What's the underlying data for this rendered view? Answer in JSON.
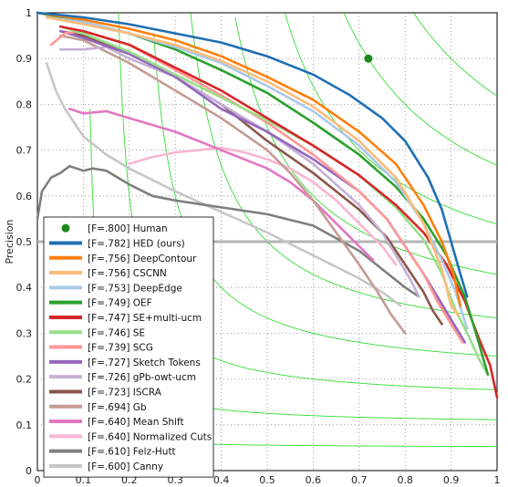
{
  "chart_data": {
    "type": "line",
    "title": "",
    "xlabel": "",
    "ylabel": "Precision",
    "xlim": [
      0,
      1
    ],
    "ylim": [
      0,
      1
    ],
    "xticks": [
      "0",
      "0.1",
      "0.2",
      "0.3",
      "0.4",
      "0.5",
      "0.6",
      "0.7",
      "0.8",
      "0.9",
      "1"
    ],
    "yticks": [
      "0",
      "0.1",
      "0.2",
      "0.3",
      "0.4",
      "0.5",
      "0.6",
      "0.7",
      "0.8",
      "0.9",
      "1"
    ],
    "grid": "dotted",
    "legend_position": "bottom-left",
    "iso_f_contours": [
      0.1,
      0.2,
      0.3,
      0.4,
      0.5,
      0.6,
      0.7,
      0.8,
      0.9
    ],
    "iso_f_color": "#33dd33",
    "human": {
      "label": "[F=.800] Human",
      "point": [
        0.72,
        0.9
      ],
      "color": "#1a8a1a"
    },
    "reference_line": {
      "y": 0.5,
      "color": "#b4b4b4"
    },
    "series": [
      {
        "name": "[F=.782] HED (ours)",
        "color": "#1f6fb4",
        "points": [
          [
            0,
            1
          ],
          [
            0.1,
            0.99
          ],
          [
            0.2,
            0.975
          ],
          [
            0.3,
            0.955
          ],
          [
            0.4,
            0.935
          ],
          [
            0.5,
            0.905
          ],
          [
            0.6,
            0.865
          ],
          [
            0.68,
            0.82
          ],
          [
            0.75,
            0.77
          ],
          [
            0.8,
            0.72
          ],
          [
            0.85,
            0.64
          ],
          [
            0.88,
            0.57
          ],
          [
            0.9,
            0.5
          ],
          [
            0.92,
            0.43
          ],
          [
            0.935,
            0.38
          ]
        ]
      },
      {
        "name": "[F=.756] DeepContour",
        "color": "#ff7f0e",
        "points": [
          [
            0,
            1
          ],
          [
            0.1,
            0.985
          ],
          [
            0.2,
            0.965
          ],
          [
            0.3,
            0.94
          ],
          [
            0.4,
            0.905
          ],
          [
            0.5,
            0.86
          ],
          [
            0.6,
            0.81
          ],
          [
            0.7,
            0.74
          ],
          [
            0.78,
            0.67
          ],
          [
            0.84,
            0.58
          ],
          [
            0.88,
            0.5
          ],
          [
            0.905,
            0.43
          ],
          [
            0.92,
            0.36
          ]
        ]
      },
      {
        "name": "[F=.756] CSCNN",
        "color": "#ffbb78",
        "points": [
          [
            0.02,
            0.99
          ],
          [
            0.1,
            0.975
          ],
          [
            0.2,
            0.955
          ],
          [
            0.3,
            0.93
          ],
          [
            0.4,
            0.895
          ],
          [
            0.5,
            0.85
          ],
          [
            0.6,
            0.795
          ],
          [
            0.7,
            0.72
          ],
          [
            0.78,
            0.64
          ],
          [
            0.84,
            0.54
          ],
          [
            0.88,
            0.44
          ],
          [
            0.9,
            0.36
          ],
          [
            0.915,
            0.34
          ]
        ]
      },
      {
        "name": "[F=.753] DeepEdge",
        "color": "#a9c9e8",
        "points": [
          [
            0.02,
            0.99
          ],
          [
            0.1,
            0.98
          ],
          [
            0.2,
            0.955
          ],
          [
            0.3,
            0.925
          ],
          [
            0.4,
            0.89
          ],
          [
            0.5,
            0.84
          ],
          [
            0.6,
            0.785
          ],
          [
            0.7,
            0.71
          ],
          [
            0.78,
            0.63
          ],
          [
            0.84,
            0.54
          ],
          [
            0.88,
            0.46
          ],
          [
            0.91,
            0.39
          ],
          [
            0.935,
            0.31
          ]
        ]
      },
      {
        "name": "[F=.749] OEF",
        "color": "#2ca02c",
        "points": [
          [
            0,
            1
          ],
          [
            0.1,
            0.98
          ],
          [
            0.2,
            0.955
          ],
          [
            0.3,
            0.92
          ],
          [
            0.4,
            0.875
          ],
          [
            0.5,
            0.825
          ],
          [
            0.6,
            0.76
          ],
          [
            0.7,
            0.69
          ],
          [
            0.78,
            0.62
          ],
          [
            0.84,
            0.55
          ],
          [
            0.89,
            0.47
          ],
          [
            0.93,
            0.38
          ],
          [
            0.96,
            0.28
          ],
          [
            0.98,
            0.21
          ]
        ]
      },
      {
        "name": "[F=.747] SE+multi-ucm",
        "color": "#d62728",
        "points": [
          [
            0.05,
            0.97
          ],
          [
            0.1,
            0.96
          ],
          [
            0.2,
            0.93
          ],
          [
            0.3,
            0.88
          ],
          [
            0.4,
            0.83
          ],
          [
            0.5,
            0.77
          ],
          [
            0.6,
            0.71
          ],
          [
            0.7,
            0.645
          ],
          [
            0.78,
            0.58
          ],
          [
            0.84,
            0.52
          ],
          [
            0.89,
            0.45
          ],
          [
            0.93,
            0.37
          ],
          [
            0.96,
            0.29
          ],
          [
            0.985,
            0.23
          ],
          [
            1.0,
            0.16
          ]
        ]
      },
      {
        "name": "[F=.746] SE",
        "color": "#98df8a",
        "points": [
          [
            0.05,
            0.97
          ],
          [
            0.1,
            0.955
          ],
          [
            0.2,
            0.915
          ],
          [
            0.3,
            0.865
          ],
          [
            0.4,
            0.815
          ],
          [
            0.5,
            0.765
          ],
          [
            0.6,
            0.71
          ],
          [
            0.7,
            0.645
          ],
          [
            0.78,
            0.575
          ],
          [
            0.84,
            0.505
          ],
          [
            0.88,
            0.43
          ],
          [
            0.91,
            0.35
          ],
          [
            0.94,
            0.29
          ],
          [
            0.96,
            0.245
          ],
          [
            0.98,
            0.21
          ]
        ]
      },
      {
        "name": "[F=.739] SCG",
        "color": "#ff9896",
        "points": [
          [
            0.03,
            0.93
          ],
          [
            0.06,
            0.955
          ],
          [
            0.1,
            0.96
          ],
          [
            0.2,
            0.93
          ],
          [
            0.3,
            0.875
          ],
          [
            0.4,
            0.82
          ],
          [
            0.5,
            0.76
          ],
          [
            0.6,
            0.69
          ],
          [
            0.7,
            0.61
          ],
          [
            0.76,
            0.55
          ],
          [
            0.8,
            0.49
          ],
          [
            0.84,
            0.43
          ],
          [
            0.87,
            0.37
          ],
          [
            0.9,
            0.32
          ],
          [
            0.925,
            0.28
          ]
        ]
      },
      {
        "name": "[F=.727] Sketch Tokens",
        "color": "#9467bd",
        "points": [
          [
            0.05,
            0.96
          ],
          [
            0.1,
            0.945
          ],
          [
            0.2,
            0.91
          ],
          [
            0.3,
            0.86
          ],
          [
            0.4,
            0.79
          ],
          [
            0.5,
            0.74
          ],
          [
            0.6,
            0.68
          ],
          [
            0.7,
            0.61
          ],
          [
            0.76,
            0.55
          ],
          [
            0.8,
            0.49
          ],
          [
            0.84,
            0.43
          ],
          [
            0.87,
            0.38
          ],
          [
            0.9,
            0.33
          ],
          [
            0.93,
            0.28
          ]
        ]
      },
      {
        "name": "[F=.726] gPb-owt-ucm",
        "color": "#c5b0d5",
        "points": [
          [
            0.05,
            0.92
          ],
          [
            0.1,
            0.92
          ],
          [
            0.15,
            0.925
          ],
          [
            0.2,
            0.9
          ],
          [
            0.3,
            0.86
          ],
          [
            0.4,
            0.8
          ],
          [
            0.5,
            0.74
          ],
          [
            0.6,
            0.67
          ],
          [
            0.7,
            0.58
          ],
          [
            0.75,
            0.52
          ],
          [
            0.78,
            0.47
          ],
          [
            0.81,
            0.42
          ],
          [
            0.83,
            0.38
          ]
        ]
      },
      {
        "name": "[F=.723] ISCRA",
        "color": "#8c564b",
        "points": [
          [
            0.05,
            0.96
          ],
          [
            0.1,
            0.95
          ],
          [
            0.2,
            0.91
          ],
          [
            0.3,
            0.86
          ],
          [
            0.4,
            0.8
          ],
          [
            0.5,
            0.72
          ],
          [
            0.6,
            0.65
          ],
          [
            0.7,
            0.57
          ],
          [
            0.76,
            0.51
          ],
          [
            0.8,
            0.45
          ],
          [
            0.84,
            0.39
          ],
          [
            0.86,
            0.35
          ],
          [
            0.88,
            0.32
          ]
        ]
      },
      {
        "name": "[F=.694] Gb",
        "color": "#c49c94",
        "points": [
          [
            0.05,
            0.95
          ],
          [
            0.1,
            0.94
          ],
          [
            0.2,
            0.89
          ],
          [
            0.3,
            0.83
          ],
          [
            0.4,
            0.77
          ],
          [
            0.5,
            0.7
          ],
          [
            0.55,
            0.65
          ],
          [
            0.6,
            0.59
          ],
          [
            0.65,
            0.52
          ],
          [
            0.7,
            0.45
          ],
          [
            0.74,
            0.39
          ],
          [
            0.77,
            0.34
          ],
          [
            0.8,
            0.3
          ]
        ]
      },
      {
        "name": "[F=.640] Mean Shift",
        "color": "#e377c2",
        "points": [
          [
            0.07,
            0.79
          ],
          [
            0.1,
            0.78
          ],
          [
            0.15,
            0.785
          ],
          [
            0.2,
            0.77
          ],
          [
            0.3,
            0.74
          ],
          [
            0.4,
            0.7
          ],
          [
            0.5,
            0.66
          ],
          [
            0.55,
            0.63
          ],
          [
            0.6,
            0.59
          ],
          [
            0.65,
            0.54
          ],
          [
            0.7,
            0.49
          ],
          [
            0.73,
            0.46
          ]
        ]
      },
      {
        "name": "[F=.640] Normalized Cuts",
        "color": "#f7b6d2",
        "points": [
          [
            0.2,
            0.67
          ],
          [
            0.25,
            0.685
          ],
          [
            0.3,
            0.695
          ],
          [
            0.35,
            0.7
          ],
          [
            0.4,
            0.705
          ],
          [
            0.45,
            0.695
          ],
          [
            0.5,
            0.68
          ],
          [
            0.55,
            0.66
          ],
          [
            0.6,
            0.63
          ],
          [
            0.65,
            0.59
          ],
          [
            0.7,
            0.54
          ],
          [
            0.75,
            0.49
          ],
          [
            0.78,
            0.45
          ]
        ]
      },
      {
        "name": "[F=.610] Felz-Hutt",
        "color": "#7f7f7f",
        "points": [
          [
            0.0,
            0.55
          ],
          [
            0.01,
            0.61
          ],
          [
            0.03,
            0.64
          ],
          [
            0.05,
            0.65
          ],
          [
            0.07,
            0.665
          ],
          [
            0.1,
            0.655
          ],
          [
            0.12,
            0.66
          ],
          [
            0.15,
            0.655
          ],
          [
            0.2,
            0.625
          ],
          [
            0.25,
            0.6
          ],
          [
            0.3,
            0.59
          ],
          [
            0.4,
            0.575
          ],
          [
            0.5,
            0.56
          ],
          [
            0.6,
            0.535
          ],
          [
            0.7,
            0.48
          ],
          [
            0.75,
            0.44
          ],
          [
            0.8,
            0.4
          ],
          [
            0.83,
            0.38
          ]
        ]
      },
      {
        "name": "[F=.600] Canny",
        "color": "#c7c7c7",
        "points": [
          [
            0.02,
            0.89
          ],
          [
            0.04,
            0.83
          ],
          [
            0.06,
            0.79
          ],
          [
            0.1,
            0.73
          ],
          [
            0.15,
            0.69
          ],
          [
            0.2,
            0.66
          ],
          [
            0.3,
            0.61
          ],
          [
            0.4,
            0.565
          ],
          [
            0.5,
            0.52
          ],
          [
            0.6,
            0.47
          ],
          [
            0.7,
            0.42
          ],
          [
            0.75,
            0.39
          ],
          [
            0.79,
            0.36
          ]
        ]
      }
    ]
  }
}
